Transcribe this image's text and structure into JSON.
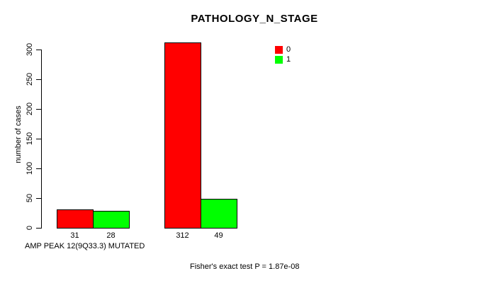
{
  "chart_data": {
    "type": "bar",
    "title": "PATHOLOGY_N_STAGE",
    "ylabel": "number of cases",
    "xlabel": "AMP PEAK 12(9Q33.3) MUTATED",
    "footnote": "Fisher's exact test P = 1.87e-08",
    "ylim": [
      0,
      300
    ],
    "yticks": [
      0,
      50,
      100,
      150,
      200,
      250,
      300
    ],
    "grid": false,
    "legend_position": "top-right-inside",
    "legend": [
      {
        "label": "0",
        "color": "#ff0000"
      },
      {
        "label": "1",
        "color": "#00ff00"
      }
    ],
    "series": [
      {
        "name": "0",
        "color": "#ff0000",
        "values": [
          31,
          312
        ]
      },
      {
        "name": "1",
        "color": "#00ff00",
        "values": [
          28,
          49
        ]
      }
    ],
    "bar_value_labels": [
      [
        "31",
        "28"
      ],
      [
        "312",
        "49"
      ]
    ],
    "axis_color": "#000000",
    "background_color": "#ffffff"
  }
}
